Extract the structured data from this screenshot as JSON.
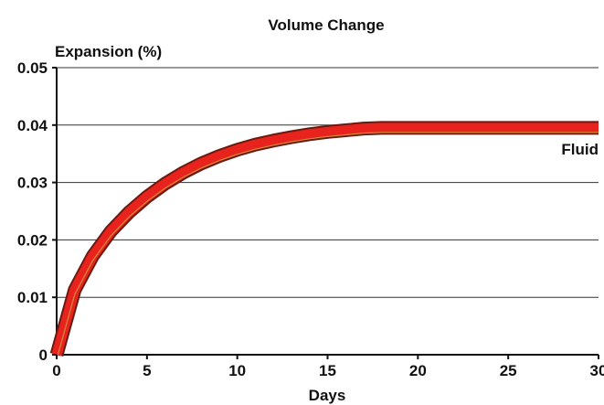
{
  "chart_data": {
    "type": "line",
    "title": "Volume Change",
    "ylabel": "Expansion (%)",
    "xlabel": "Days",
    "xlim": [
      0,
      30
    ],
    "ylim": [
      0,
      0.05
    ],
    "x_ticks": [
      "0",
      "5",
      "10",
      "15",
      "20",
      "25",
      "30"
    ],
    "y_ticks": [
      "0",
      "0.01",
      "0.02",
      "0.03",
      "0.04",
      "0.05"
    ],
    "grid": "horizontal",
    "series": [
      {
        "name": "Fluid",
        "color": "#e8231e",
        "x": [
          0,
          1,
          2,
          3,
          4,
          5,
          6,
          7,
          8,
          9,
          10,
          11,
          12,
          13,
          14,
          15,
          16,
          17,
          18,
          20,
          25,
          30
        ],
        "y": [
          0,
          0.0113,
          0.0172,
          0.0215,
          0.0248,
          0.0275,
          0.0298,
          0.0317,
          0.0333,
          0.0346,
          0.0357,
          0.0366,
          0.0373,
          0.0379,
          0.0384,
          0.0388,
          0.0391,
          0.0394,
          0.0395,
          0.0395,
          0.0395,
          0.0395
        ]
      }
    ]
  }
}
